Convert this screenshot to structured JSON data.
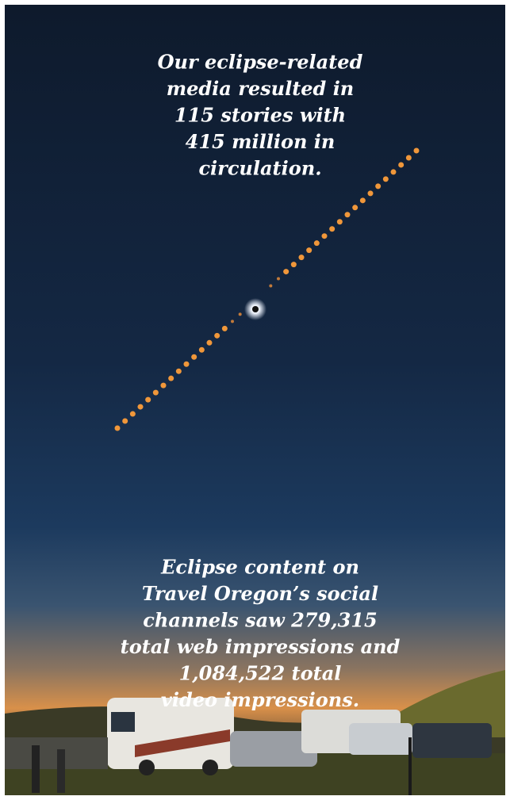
{
  "top_text": {
    "lines": [
      "Our eclipse-related",
      "media resulted in",
      "115 stories with",
      "415 million in",
      "circulation."
    ]
  },
  "bottom_text": {
    "lines": [
      "Eclipse content on",
      "Travel Oregon’s social",
      "channels saw 279,315",
      "total web impressions and",
      "1,084,522 total",
      "video impressions."
    ]
  }
}
